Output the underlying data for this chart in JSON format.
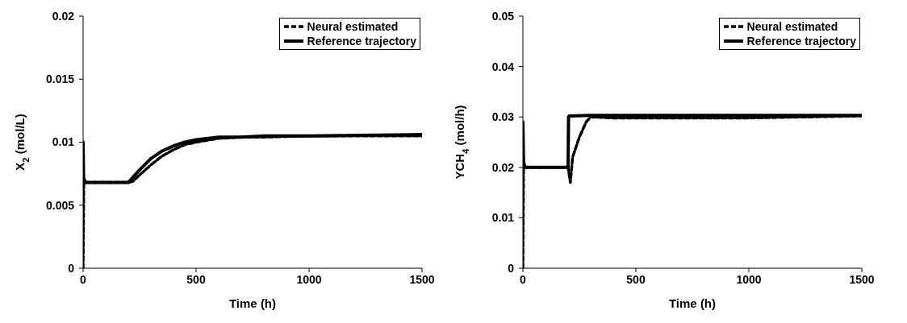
{
  "chart_data": [
    {
      "type": "line",
      "xlabel": "Time (h)",
      "ylabel": "X$_{2}$ (mol/L)",
      "xlim": [
        0,
        1500
      ],
      "xticks": [
        0,
        500,
        1000,
        1500
      ],
      "ylim": [
        0,
        0.02
      ],
      "yticks": [
        0,
        0.005,
        0.01,
        0.015,
        0.02
      ],
      "grid": false,
      "legend": "top right",
      "marker": "none",
      "series": [
        {
          "name": "Neural estimated",
          "color": "#000000",
          "line_style": "dashed",
          "x": [
            0,
            3,
            10,
            200,
            220,
            250,
            300,
            350,
            400,
            450,
            500,
            600,
            700,
            800,
            1000,
            1500
          ],
          "values": [
            0,
            0.0068,
            0.0068,
            0.0068,
            0.0069,
            0.0074,
            0.0082,
            0.0089,
            0.0094,
            0.0098,
            0.01,
            0.0103,
            0.0104,
            0.0104,
            0.0105,
            0.0105
          ]
        },
        {
          "name": "Reference trajectory",
          "color": "#000000",
          "line_style": "solid",
          "x": [
            0,
            2,
            10,
            200,
            250,
            300,
            350,
            400,
            450,
            500,
            600,
            700,
            800,
            1000,
            1500
          ],
          "values": [
            0.01,
            0.0072,
            0.0068,
            0.0068,
            0.0078,
            0.0087,
            0.0093,
            0.0097,
            0.01,
            0.0102,
            0.0104,
            0.0104,
            0.0105,
            0.0105,
            0.0106
          ]
        }
      ]
    },
    {
      "type": "line",
      "xlabel": "Time (h)",
      "ylabel": "YCH$_{4}$ (mol/h)",
      "xlim": [
        0,
        1500
      ],
      "xticks": [
        0,
        500,
        1000,
        1500
      ],
      "ylim": [
        0,
        0.05
      ],
      "yticks": [
        0,
        0.01,
        0.02,
        0.03,
        0.04,
        0.05
      ],
      "grid": false,
      "legend": "top right",
      "marker": "none",
      "series": [
        {
          "name": "Neural estimated",
          "color": "#000000",
          "line_style": "dashed",
          "x": [
            0,
            3,
            10,
            200,
            210,
            220,
            250,
            280,
            300,
            400,
            1000,
            1500
          ],
          "values": [
            0,
            0.021,
            0.02,
            0.02,
            0.017,
            0.022,
            0.026,
            0.029,
            0.03,
            0.0298,
            0.0298,
            0.0302
          ]
        },
        {
          "name": "Reference trajectory",
          "color": "#000000",
          "line_style": "solid",
          "x": [
            0,
            3,
            10,
            200,
            202,
            205,
            300,
            1500
          ],
          "values": [
            0.029,
            0.021,
            0.02,
            0.02,
            0.03,
            0.0302,
            0.0303,
            0.0303
          ]
        }
      ]
    }
  ]
}
